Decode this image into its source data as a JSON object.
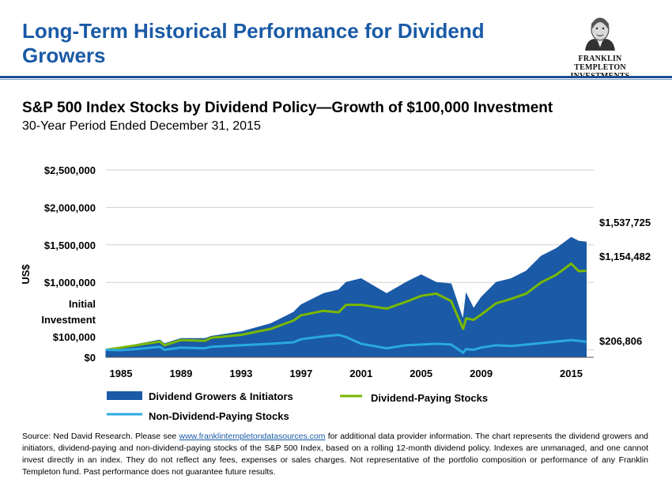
{
  "header": {
    "title": "Long-Term Historical Performance for Dividend Growers",
    "logo_line1": "FRANKLIN TEMPLETON",
    "logo_line2": "INVESTMENTS"
  },
  "chart_data": {
    "type": "area",
    "title": "S&P 500 Index Stocks by Dividend Policy—Growth of $100,000 Investment",
    "subtitle": "30-Year Period Ended December 31, 2015",
    "ylabel": "US$",
    "ylim": [
      0,
      2500000
    ],
    "xlim": [
      1984,
      2016.5
    ],
    "yticks": [
      {
        "value": 0,
        "label": "$0"
      },
      {
        "value": 100000,
        "label": "$100,000"
      },
      {
        "value": 1000000,
        "label": "$1,000,000"
      },
      {
        "value": 1500000,
        "label": "$1,500,000"
      },
      {
        "value": 2000000,
        "label": "$2,000,000"
      },
      {
        "value": 2500000,
        "label": "$2,500,000"
      }
    ],
    "initial_investment_label": [
      "Initial",
      "Investment"
    ],
    "xticks": [
      1985,
      1989,
      1993,
      1997,
      2001,
      2005,
      2009,
      2015
    ],
    "series": [
      {
        "name": "Dividend Growers & Initiators",
        "color": "#1a5aa6",
        "style": "area",
        "end_label": "$1,537,725",
        "x": [
          1984.0,
          1985.0,
          1986.0,
          1987.6,
          1987.9,
          1989.0,
          1990.6,
          1991.0,
          1993.0,
          1995.0,
          1996.5,
          1997.0,
          1998.5,
          1999.5,
          2000.0,
          2001.0,
          2002.7,
          2004.0,
          2005.0,
          2006.0,
          2007.0,
          2007.8,
          2008.0,
          2008.5,
          2009.0,
          2010.0,
          2011.0,
          2012.0,
          2013.0,
          2014.0,
          2015.0,
          2015.5,
          2016.0
        ],
        "values": [
          100000,
          130000,
          170000,
          230000,
          180000,
          250000,
          250000,
          280000,
          340000,
          450000,
          600000,
          700000,
          850000,
          900000,
          1000000,
          1050000,
          850000,
          1000000,
          1100000,
          1000000,
          980000,
          500000,
          850000,
          650000,
          800000,
          1000000,
          1050000,
          1150000,
          1350000,
          1450000,
          1600000,
          1550000,
          1537725
        ]
      },
      {
        "name": "Dividend-Paying Stocks",
        "color": "#7ab800",
        "style": "line",
        "end_label": "$1,154,482",
        "x": [
          1984.0,
          1985.0,
          1986.0,
          1987.6,
          1987.9,
          1989.0,
          1990.6,
          1991.0,
          1993.0,
          1995.0,
          1996.5,
          1997.0,
          1998.5,
          1999.5,
          2000.0,
          2001.0,
          2002.7,
          2004.0,
          2005.0,
          2006.0,
          2007.0,
          2007.8,
          2008.0,
          2008.5,
          2009.0,
          2010.0,
          2011.0,
          2012.0,
          2013.0,
          2014.0,
          2015.0,
          2015.5,
          2016.0
        ],
        "values": [
          100000,
          130000,
          160000,
          210000,
          160000,
          230000,
          220000,
          260000,
          300000,
          380000,
          490000,
          560000,
          620000,
          600000,
          700000,
          700000,
          650000,
          740000,
          820000,
          850000,
          750000,
          380000,
          520000,
          500000,
          570000,
          720000,
          780000,
          850000,
          1000000,
          1100000,
          1250000,
          1150000,
          1154482
        ]
      },
      {
        "name": "Non-Dividend-Paying Stocks",
        "color": "#2aa9e0",
        "style": "line",
        "end_label": "$206,806",
        "x": [
          1984.0,
          1985.0,
          1986.0,
          1987.6,
          1987.9,
          1989.0,
          1990.6,
          1991.0,
          1993.0,
          1995.0,
          1996.5,
          1997.0,
          1998.5,
          1999.5,
          2000.0,
          2001.0,
          2002.7,
          2004.0,
          2005.0,
          2006.0,
          2007.0,
          2007.8,
          2008.0,
          2008.5,
          2009.0,
          2010.0,
          2011.0,
          2012.0,
          2013.0,
          2014.0,
          2015.0,
          2015.5,
          2016.0
        ],
        "values": [
          100000,
          95000,
          110000,
          140000,
          100000,
          130000,
          120000,
          140000,
          160000,
          180000,
          200000,
          240000,
          280000,
          300000,
          270000,
          180000,
          120000,
          160000,
          170000,
          180000,
          170000,
          60000,
          110000,
          100000,
          130000,
          160000,
          150000,
          170000,
          190000,
          210000,
          230000,
          220000,
          206806
        ]
      }
    ],
    "grid": "horizontal",
    "legend": "bottom"
  },
  "footer": {
    "source_pre": "Source: Ned David Research. Please see ",
    "source_link": "www.franklintempletondatasources.com",
    "source_post": " for additional data provider information. The chart represents the dividend growers and initiators, dividend-paying and non-dividend-paying stocks of the S&P 500 Index, based on a rolling 12-month dividend policy. Indexes are unmanaged, and one cannot invest directly in an index. They do not reflect any fees, expenses or sales charges. Not representative of the portfolio composition or performance of any Franklin Templeton fund. Past performance does not guarantee future results."
  }
}
